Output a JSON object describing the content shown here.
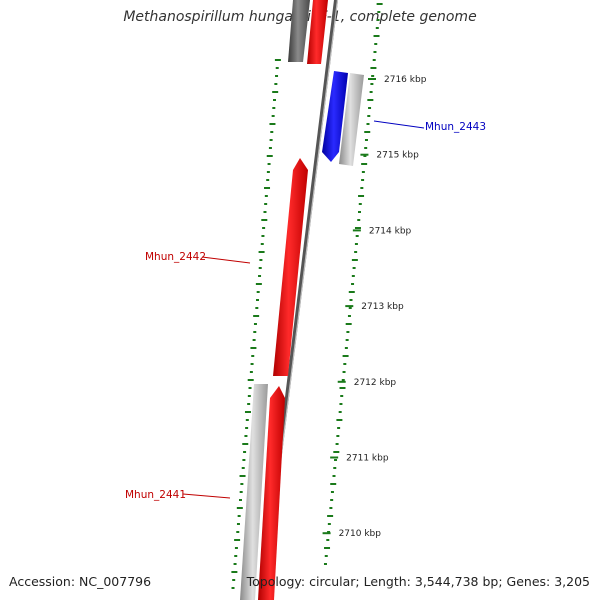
{
  "title": "Methanospirillum hungatei JF-1, complete genome",
  "footer": {
    "accession": "Accession: NC_007796",
    "summary": "Topology: circular; Length: 3,544,738 bp; Genes: 3,205"
  },
  "ticks": [
    {
      "kbp": 2716,
      "label": "2716 kbp"
    },
    {
      "kbp": 2715,
      "label": "2715 kbp"
    },
    {
      "kbp": 2714,
      "label": "2714 kbp"
    },
    {
      "kbp": 2713,
      "label": "2713 kbp"
    },
    {
      "kbp": 2712,
      "label": "2712 kbp"
    },
    {
      "kbp": 2711,
      "label": "2711 kbp"
    },
    {
      "kbp": 2710,
      "label": "2710 kbp"
    }
  ],
  "genes": [
    {
      "name": "Mhun_2443",
      "strand": "reverse",
      "color": "#0000ff"
    },
    {
      "name": "Mhun_2442",
      "strand": "forward",
      "color": "#ff0000"
    },
    {
      "name": "Mhun_2441",
      "strand": "forward",
      "color": "#ff0000"
    }
  ],
  "colors": {
    "forward_cds": "#ff0000",
    "reverse_cds": "#0000ff",
    "gene_gray": "#b8b8b8",
    "dark_gray": "#606060",
    "gc_dots": "#1a7a1a"
  }
}
